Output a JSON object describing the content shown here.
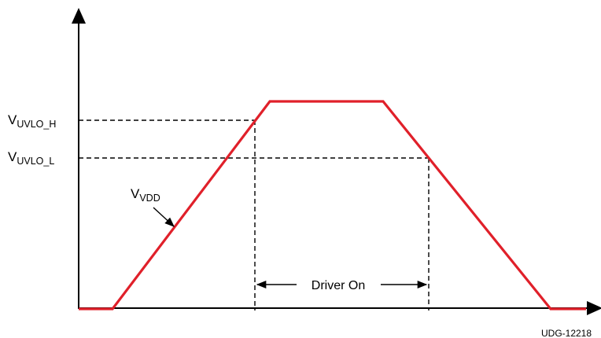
{
  "diagram": {
    "labels": {
      "uvlo_h": {
        "main": "V",
        "sub": "UVLO_H"
      },
      "uvlo_l": {
        "main": "V",
        "sub": "UVLO_L"
      },
      "vdd": {
        "main": "V",
        "sub": "VDD"
      },
      "driver_on": "Driver On",
      "figure_id": "UDG-12218"
    },
    "colors": {
      "waveform": "#e0202a",
      "axes": "#000000",
      "dashed": "#000000",
      "text": "#000000",
      "background": "#ffffff"
    }
  }
}
